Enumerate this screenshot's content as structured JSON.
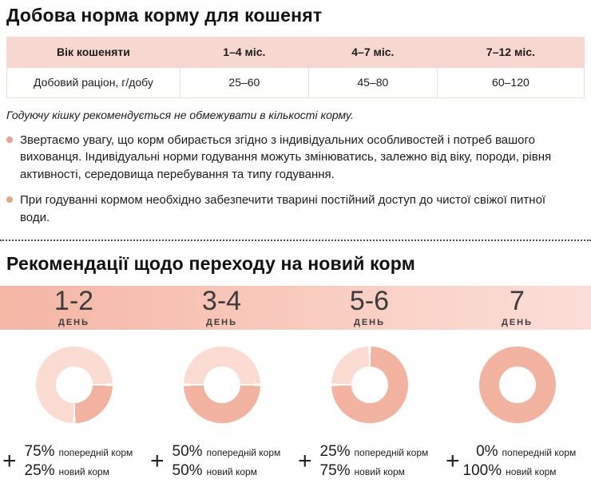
{
  "section_feeding": {
    "title": "Добова норма корму для кошенят",
    "table": {
      "header": [
        "Вік кошеняти",
        "1–4 міс.",
        "4–7 міс.",
        "7–12 міс."
      ],
      "row_label": "Добовий раціон, г/добу",
      "row_values": [
        "25–60",
        "45–80",
        "60–120"
      ]
    },
    "note_italic": "Годуючу кішку рекомендується не обмежувати в кількості корму.",
    "bullets": [
      "Звертаємо увагу, що корм обирається згідно з індивідуальних особливостей і потреб вашого вихованця. Індивідуальні норми годування можуть змінюватись, залежно від віку, породи, рівня активності, середовища перебування та типу годування.",
      "При годуванні кормом необхідно забезпечити тварині постійний доступ до чистої свіжої питної води."
    ]
  },
  "section_transition": {
    "title": "Рекомендації щодо переходу на новий корм",
    "day_word": "ДЕНЬ",
    "plus_sign": "+",
    "days": [
      {
        "number": "1-2",
        "prev_pct": "75%",
        "prev_label": "попередній корм",
        "new_pct": "25%",
        "new_label": "новий корм"
      },
      {
        "number": "3-4",
        "prev_pct": "50%",
        "prev_label": "попередній корм",
        "new_pct": "50%",
        "new_label": "новий корм"
      },
      {
        "number": "5-6",
        "prev_pct": "25%",
        "prev_label": "попередній корм",
        "new_pct": "75%",
        "new_label": "новий корм"
      },
      {
        "number": "7",
        "prev_pct": "0%",
        "prev_label": "попередній корм",
        "new_pct": "100%",
        "new_label": "новий корм"
      }
    ]
  },
  "colors": {
    "table_header_bg": "#f7d8d0",
    "banner_gradient_left": "#f4b5a4",
    "banner_gradient_right": "#fbded8",
    "donut_prev_food": "#fbdcd3",
    "donut_new_food": "#f2b3a0",
    "bullet_dot": "#eda28e"
  },
  "chart_data": {
    "type": "pie",
    "title": "Рекомендації щодо переходу на новий корм",
    "unit": "%",
    "charts": [
      {
        "day": "1-2",
        "start_deg": 180,
        "slices": [
          {
            "name": "попередній корм",
            "value": 75,
            "color": "#fbdcd3"
          },
          {
            "name": "новий корм",
            "value": 25,
            "color": "#f2b3a0"
          }
        ]
      },
      {
        "day": "3-4",
        "start_deg": 270,
        "slices": [
          {
            "name": "попередній корм",
            "value": 50,
            "color": "#fbdcd3"
          },
          {
            "name": "новий корм",
            "value": 50,
            "color": "#f2b3a0"
          }
        ]
      },
      {
        "day": "5-6",
        "start_deg": 270,
        "slices": [
          {
            "name": "попередній корм",
            "value": 25,
            "color": "#fbdcd3"
          },
          {
            "name": "новий корм",
            "value": 75,
            "color": "#f2b3a0"
          }
        ]
      },
      {
        "day": "7",
        "start_deg": 0,
        "slices": [
          {
            "name": "попередній корм",
            "value": 0,
            "color": "#fbdcd3"
          },
          {
            "name": "новий корм",
            "value": 100,
            "color": "#f2b3a0"
          }
        ]
      }
    ]
  }
}
